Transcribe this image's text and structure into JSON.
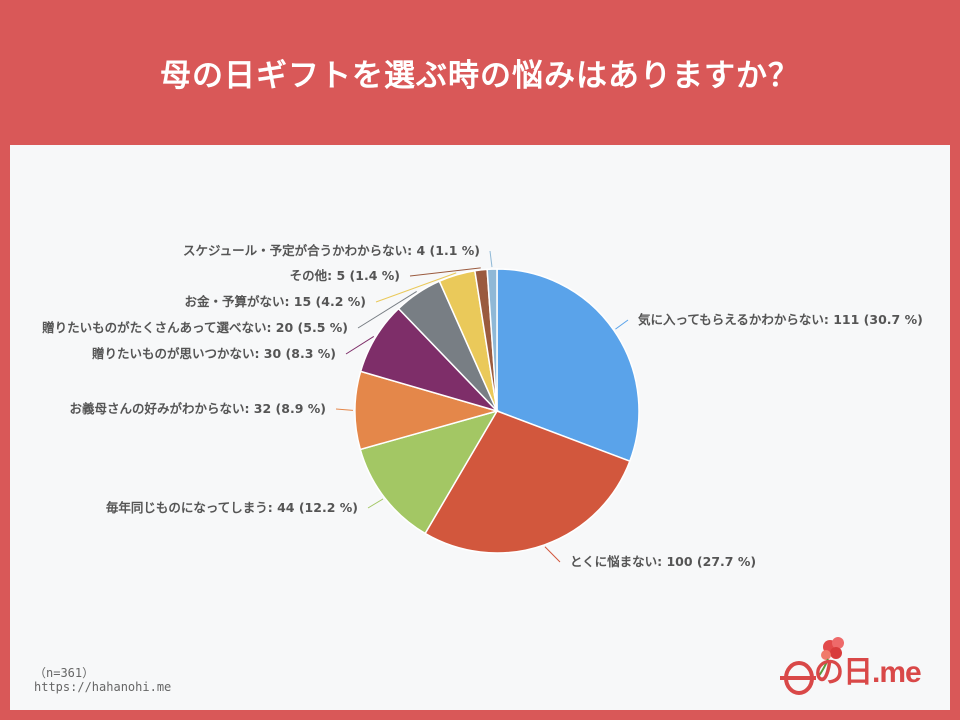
{
  "page": {
    "title": "母の日ギフトを選ぶ時の悩みはありますか？",
    "note": "（n=361）",
    "url": "https://hahanohi.me",
    "logo_text": "の日.me",
    "colors": {
      "header": "#d95858",
      "panel": "#f7f8f9",
      "leader": "#999999"
    }
  },
  "chart_data": {
    "type": "pie",
    "start_angle_deg": 0,
    "direction": "clockwise",
    "slices": [
      {
        "label": "気に入ってもらえるかわからない: 111 (30.7 %)",
        "value": 111,
        "percent": 30.7,
        "color": "#5aa3ea"
      },
      {
        "label": "とくに悩まない: 100 (27.7 %)",
        "value": 100,
        "percent": 27.7,
        "color": "#d2573d"
      },
      {
        "label": "毎年同じものになってしまう: 44 (12.2 %)",
        "value": 44,
        "percent": 12.2,
        "color": "#a3c764"
      },
      {
        "label": "お義母さんの好みがわからない: 32 (8.9 %)",
        "value": 32,
        "percent": 8.9,
        "color": "#e4874a"
      },
      {
        "label": "贈りたいものが思いつかない: 30 (8.3 %)",
        "value": 30,
        "percent": 8.3,
        "color": "#7e2e69"
      },
      {
        "label": "贈りたいものがたくさんあって選べない: 20 (5.5 %)",
        "value": 20,
        "percent": 5.5,
        "color": "#787e84"
      },
      {
        "label": "お金・予算がない: 15 (4.2 %)",
        "value": 15,
        "percent": 4.2,
        "color": "#eac95a"
      },
      {
        "label": "その他: 5 (1.4 %)",
        "value": 5,
        "percent": 1.4,
        "color": "#9a5a3e"
      },
      {
        "label": "スケジュール・予定が合うかわからない: 4 (1.1 %)",
        "value": 4,
        "percent": 1.1,
        "color": "#8fb8d6"
      }
    ]
  }
}
